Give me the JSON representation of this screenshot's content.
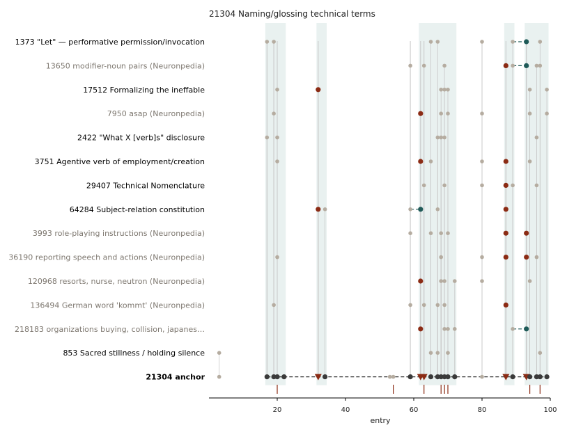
{
  "chart_data": {
    "type": "scatter",
    "title": "21304  Naming/glossing technical terms",
    "xlabel": "entry",
    "ylabel": "",
    "xlim": [
      0,
      100
    ],
    "xticks": [
      20,
      40,
      60,
      80,
      100
    ],
    "grid": false,
    "colors": {
      "guide": "#c8c8c8",
      "plain": "#b5aca0",
      "red": "#8b2b14",
      "teal": "#1f5a58",
      "dark": "#3a3a3a",
      "band": "#e9f1f0",
      "rug": "#8b2b14",
      "label_strong": "#000000",
      "label_muted": "#7d776f"
    },
    "bands": [
      [
        16.5,
        22.5
      ],
      [
        31.5,
        34.5
      ],
      [
        61.5,
        72.5
      ],
      [
        86.5,
        89.5
      ],
      [
        92.5,
        99.5
      ]
    ],
    "guide_lines": [
      17,
      19,
      20,
      32,
      59,
      62,
      63,
      80,
      87,
      93
    ],
    "rug": [
      20,
      54,
      63,
      68,
      69,
      70,
      94,
      97
    ],
    "rows": [
      {
        "id": "1373",
        "label": "\"Let\" — performative permission/invocation",
        "style": "strong",
        "points": [
          [
            17,
            "plain"
          ],
          [
            19,
            "plain"
          ],
          [
            65,
            "plain"
          ],
          [
            67,
            "plain"
          ],
          [
            80,
            "plain"
          ],
          [
            89,
            "plain"
          ],
          [
            93,
            "teal"
          ],
          [
            97,
            "plain"
          ]
        ],
        "links": [
          [
            89,
            93
          ]
        ]
      },
      {
        "id": "13650",
        "label": "modifier-noun pairs (Neuronpedia)",
        "style": "muted",
        "points": [
          [
            59,
            "plain"
          ],
          [
            63,
            "plain"
          ],
          [
            69,
            "plain"
          ],
          [
            87,
            "red"
          ],
          [
            89,
            "plain"
          ],
          [
            93,
            "teal"
          ],
          [
            96,
            "plain"
          ],
          [
            97,
            "plain"
          ]
        ],
        "links": [
          [
            89,
            93
          ]
        ]
      },
      {
        "id": "17512",
        "label": "Formalizing the ineffable",
        "style": "strong",
        "points": [
          [
            20,
            "plain"
          ],
          [
            32,
            "red"
          ],
          [
            68,
            "plain"
          ],
          [
            69,
            "plain"
          ],
          [
            70,
            "plain"
          ],
          [
            94,
            "plain"
          ],
          [
            99,
            "plain"
          ]
        ],
        "links": []
      },
      {
        "id": "7950",
        "label": "asap (Neuronpedia)",
        "style": "muted",
        "points": [
          [
            19,
            "plain"
          ],
          [
            62,
            "red"
          ],
          [
            68,
            "plain"
          ],
          [
            70,
            "plain"
          ],
          [
            80,
            "plain"
          ],
          [
            94,
            "plain"
          ],
          [
            99,
            "plain"
          ]
        ],
        "links": []
      },
      {
        "id": "2422",
        "label": "\"What X [verb]s\" disclosure",
        "style": "strong",
        "points": [
          [
            17,
            "plain"
          ],
          [
            20,
            "plain"
          ],
          [
            67,
            "plain"
          ],
          [
            68,
            "plain"
          ],
          [
            69,
            "plain"
          ],
          [
            96,
            "plain"
          ]
        ],
        "links": []
      },
      {
        "id": "3751",
        "label": "Agentive verb of employment/creation",
        "style": "strong",
        "points": [
          [
            20,
            "plain"
          ],
          [
            62,
            "red"
          ],
          [
            65,
            "plain"
          ],
          [
            80,
            "plain"
          ],
          [
            87,
            "red"
          ],
          [
            94,
            "plain"
          ]
        ],
        "links": []
      },
      {
        "id": "29407",
        "label": "Technical Nomenclature",
        "style": "strong",
        "points": [
          [
            63,
            "plain"
          ],
          [
            69,
            "plain"
          ],
          [
            80,
            "plain"
          ],
          [
            87,
            "red"
          ],
          [
            89,
            "plain"
          ],
          [
            96,
            "plain"
          ]
        ],
        "links": []
      },
      {
        "id": "64284",
        "label": "Subject-relation constitution",
        "style": "strong",
        "points": [
          [
            32,
            "red"
          ],
          [
            34,
            "plain"
          ],
          [
            59,
            "plain"
          ],
          [
            62,
            "teal"
          ],
          [
            67,
            "plain"
          ],
          [
            87,
            "red"
          ]
        ],
        "links": [
          [
            59,
            62
          ]
        ]
      },
      {
        "id": "3993",
        "label": "role-playing instructions (Neuronpedia)",
        "style": "muted",
        "points": [
          [
            59,
            "plain"
          ],
          [
            65,
            "plain"
          ],
          [
            68,
            "plain"
          ],
          [
            70,
            "plain"
          ],
          [
            87,
            "red"
          ],
          [
            93,
            "red"
          ]
        ],
        "links": []
      },
      {
        "id": "36190",
        "label": "reporting speech and actions (Neuronpedia)",
        "style": "muted",
        "points": [
          [
            20,
            "plain"
          ],
          [
            68,
            "plain"
          ],
          [
            80,
            "plain"
          ],
          [
            87,
            "red"
          ],
          [
            93,
            "red"
          ],
          [
            96,
            "plain"
          ]
        ],
        "links": []
      },
      {
        "id": "120968",
        "label": "resorts, nurse, neutron (Neuronpedia)",
        "style": "muted",
        "points": [
          [
            62,
            "red"
          ],
          [
            68,
            "plain"
          ],
          [
            69,
            "plain"
          ],
          [
            72,
            "plain"
          ],
          [
            80,
            "plain"
          ],
          [
            94,
            "plain"
          ]
        ],
        "links": []
      },
      {
        "id": "136494",
        "label": "German word 'kommt' (Neuronpedia)",
        "style": "muted",
        "points": [
          [
            19,
            "plain"
          ],
          [
            59,
            "plain"
          ],
          [
            63,
            "plain"
          ],
          [
            67,
            "plain"
          ],
          [
            69,
            "plain"
          ],
          [
            87,
            "red"
          ]
        ],
        "links": []
      },
      {
        "id": "218183",
        "label": "organizations buying, collision, japanes…",
        "style": "muted",
        "points": [
          [
            62,
            "red"
          ],
          [
            69,
            "plain"
          ],
          [
            70,
            "plain"
          ],
          [
            72,
            "plain"
          ],
          [
            89,
            "plain"
          ],
          [
            93,
            "teal"
          ]
        ],
        "links": [
          [
            89,
            93
          ]
        ]
      },
      {
        "id": "853",
        "label": "Sacred stillness / holding silence",
        "style": "strong",
        "points": [
          [
            3,
            "plain"
          ],
          [
            65,
            "plain"
          ],
          [
            67,
            "plain"
          ],
          [
            70,
            "plain"
          ],
          [
            97,
            "plain"
          ]
        ],
        "links": []
      },
      {
        "id": "21304",
        "label": "anchor",
        "style": "anchor",
        "points": [
          [
            3,
            "plain"
          ],
          [
            17,
            "dark"
          ],
          [
            19,
            "dark"
          ],
          [
            20,
            "dark"
          ],
          [
            22,
            "dark"
          ],
          [
            32,
            "red-tri"
          ],
          [
            34,
            "dark"
          ],
          [
            53,
            "plain"
          ],
          [
            54,
            "plain"
          ],
          [
            59,
            "dark"
          ],
          [
            62,
            "red-tri"
          ],
          [
            63,
            "red-tri"
          ],
          [
            65,
            "dark"
          ],
          [
            67,
            "dark"
          ],
          [
            68,
            "dark"
          ],
          [
            69,
            "dark"
          ],
          [
            70,
            "dark"
          ],
          [
            72,
            "dark"
          ],
          [
            80,
            "plain"
          ],
          [
            87,
            "red-tri"
          ],
          [
            89,
            "dark"
          ],
          [
            93,
            "red-tri"
          ],
          [
            94,
            "dark"
          ],
          [
            96,
            "dark"
          ],
          [
            97,
            "dark"
          ],
          [
            99,
            "dark"
          ]
        ],
        "links": [
          [
            17,
            99
          ]
        ]
      }
    ]
  }
}
